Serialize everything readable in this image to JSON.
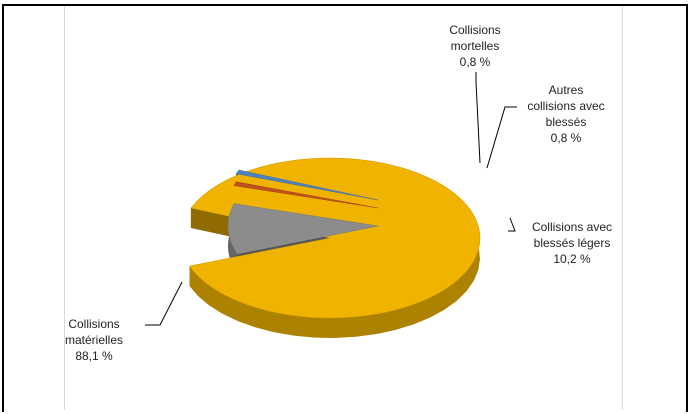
{
  "chart_data": {
    "type": "pie",
    "title": "",
    "slices": [
      {
        "label_lines": [
          "Collisions",
          "matérielles"
        ],
        "label": "Collisions matérielles",
        "value": 88.1,
        "value_text": "88,1 %",
        "color": "#f0b400"
      },
      {
        "label_lines": [
          "Collisions avec",
          "blessés légers"
        ],
        "label": "Collisions avec blessés légers",
        "value": 10.2,
        "value_text": "10,2 %",
        "color": "#8c8c8c"
      },
      {
        "label_lines": [
          "Autres",
          "collisions avec",
          "blessés"
        ],
        "label": "Autres collisions avec blessés",
        "value": 0.8,
        "value_text": "0,8 %",
        "color": "#c0501c"
      },
      {
        "label_lines": [
          "Collisions",
          "mortelles"
        ],
        "label": "Collisions mortelles",
        "value": 0.8,
        "value_text": "0,8 %",
        "color": "#4f81bd"
      }
    ]
  }
}
